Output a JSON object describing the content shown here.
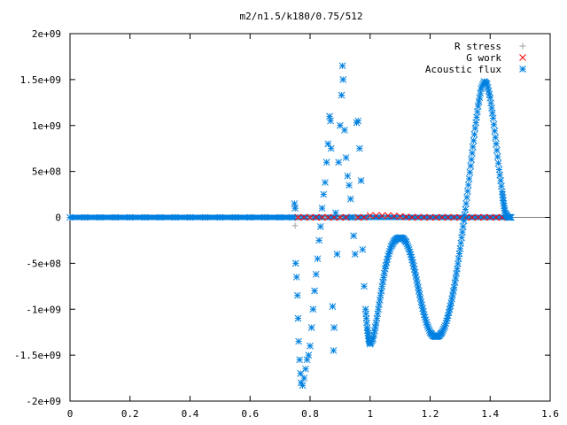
{
  "window": {
    "title": "m2/n1.5/k180/0.75/512"
  },
  "colors": {
    "background": "#ffffff",
    "axis": "#000000",
    "r_stress": "#a0a0a0",
    "g_work": "#ff0000",
    "acoustic_flux": "#0080e0"
  },
  "chart_data": {
    "type": "scatter",
    "title": "m2/n1.5/k180/0.75/512",
    "xlabel": "",
    "ylabel": "",
    "xlim": [
      0,
      1.6
    ],
    "ylim": [
      -2000000000,
      2000000000
    ],
    "x_ticks": [
      {
        "value": 0,
        "label": "0"
      },
      {
        "value": 0.2,
        "label": "0.2"
      },
      {
        "value": 0.4,
        "label": "0.4"
      },
      {
        "value": 0.6,
        "label": "0.6"
      },
      {
        "value": 0.8,
        "label": "0.8"
      },
      {
        "value": 1.0,
        "label": "1"
      },
      {
        "value": 1.2,
        "label": "1.2"
      },
      {
        "value": 1.4,
        "label": "1.4"
      },
      {
        "value": 1.6,
        "label": "1.6"
      }
    ],
    "y_ticks": [
      {
        "value": 2000000000,
        "label": "2e+09"
      },
      {
        "value": 1500000000,
        "label": "1.5e+09"
      },
      {
        "value": 1000000000,
        "label": "1e+09"
      },
      {
        "value": 500000000,
        "label": "5e+08"
      },
      {
        "value": 0,
        "label": "0"
      },
      {
        "value": -500000000,
        "label": "-5e+08"
      },
      {
        "value": -1000000000,
        "label": "-1e+09"
      },
      {
        "value": -1500000000,
        "label": "-1.5e+09"
      },
      {
        "value": -2000000000,
        "label": "-2e+09"
      }
    ],
    "grid": false,
    "legend_position": "top-right",
    "series": [
      {
        "name": "R stress",
        "marker": "plus",
        "color": "#a0a0a0",
        "points": [
          [
            0.75,
            -90000000
          ],
          [
            0.752,
            100000000
          ],
          [
            0.76,
            0
          ],
          [
            0.8,
            0
          ],
          [
            0.85,
            0
          ],
          [
            0.9,
            0
          ],
          [
            0.95,
            0
          ],
          [
            1.0,
            0
          ],
          [
            1.05,
            0
          ],
          [
            1.1,
            0
          ]
        ]
      },
      {
        "name": "G work",
        "marker": "cross",
        "color": "#ff0000",
        "points": [
          [
            0.76,
            0
          ],
          [
            0.78,
            0
          ],
          [
            0.8,
            0
          ],
          [
            0.82,
            0
          ],
          [
            0.84,
            0
          ],
          [
            0.86,
            0
          ],
          [
            0.88,
            0
          ],
          [
            0.9,
            0
          ],
          [
            0.92,
            0
          ],
          [
            0.94,
            0
          ],
          [
            0.96,
            0
          ],
          [
            0.98,
            0
          ],
          [
            1.0,
            20000000
          ],
          [
            1.02,
            20000000
          ],
          [
            1.04,
            20000000
          ],
          [
            1.06,
            20000000
          ],
          [
            1.08,
            15000000
          ],
          [
            1.1,
            10000000
          ],
          [
            1.12,
            5000000
          ],
          [
            1.14,
            0
          ],
          [
            1.16,
            0
          ],
          [
            1.18,
            0
          ],
          [
            1.2,
            0
          ],
          [
            1.22,
            0
          ],
          [
            1.24,
            0
          ],
          [
            1.26,
            0
          ],
          [
            1.28,
            0
          ],
          [
            1.3,
            0
          ],
          [
            1.32,
            0
          ],
          [
            1.34,
            0
          ],
          [
            1.36,
            0
          ],
          [
            1.38,
            0
          ],
          [
            1.4,
            0
          ],
          [
            1.42,
            0
          ],
          [
            1.44,
            0
          ],
          [
            1.46,
            0
          ]
        ]
      },
      {
        "name": "Acoustic flux",
        "marker": "star",
        "color": "#0080e0",
        "points": [
          [
            0.0,
            0
          ],
          [
            0.05,
            0
          ],
          [
            0.1,
            0
          ],
          [
            0.15,
            0
          ],
          [
            0.2,
            0
          ],
          [
            0.25,
            0
          ],
          [
            0.3,
            0
          ],
          [
            0.35,
            0
          ],
          [
            0.4,
            0
          ],
          [
            0.45,
            0
          ],
          [
            0.5,
            0
          ],
          [
            0.55,
            0
          ],
          [
            0.6,
            0
          ],
          [
            0.65,
            0
          ],
          [
            0.7,
            0
          ],
          [
            0.74,
            0
          ],
          [
            0.748,
            150000000
          ],
          [
            0.75,
            100000000
          ],
          [
            0.752,
            -500000000
          ],
          [
            0.755,
            -650000000
          ],
          [
            0.758,
            -850000000
          ],
          [
            0.76,
            -1100000000
          ],
          [
            0.762,
            -1350000000
          ],
          [
            0.765,
            -1550000000
          ],
          [
            0.768,
            -1700000000
          ],
          [
            0.77,
            -1800000000
          ],
          [
            0.775,
            -1830000000
          ],
          [
            0.78,
            -1750000000
          ],
          [
            0.785,
            -1650000000
          ],
          [
            0.79,
            -1550000000
          ],
          [
            0.795,
            -1500000000
          ],
          [
            0.8,
            -1400000000
          ],
          [
            0.805,
            -1200000000
          ],
          [
            0.81,
            -1000000000
          ],
          [
            0.815,
            -800000000
          ],
          [
            0.82,
            -620000000
          ],
          [
            0.825,
            -450000000
          ],
          [
            0.83,
            -250000000
          ],
          [
            0.835,
            -100000000
          ],
          [
            0.84,
            100000000
          ],
          [
            0.845,
            250000000
          ],
          [
            0.85,
            380000000
          ],
          [
            0.855,
            600000000
          ],
          [
            0.86,
            800000000
          ],
          [
            0.865,
            1100000000
          ],
          [
            0.868,
            1050000000
          ],
          [
            0.87,
            750000000
          ],
          [
            0.875,
            -970000000
          ],
          [
            0.878,
            -1450000000
          ],
          [
            0.88,
            -1200000000
          ],
          [
            0.885,
            50000000
          ],
          [
            0.89,
            -400000000
          ],
          [
            0.895,
            600000000
          ],
          [
            0.9,
            1000000000
          ],
          [
            0.905,
            1330000000
          ],
          [
            0.908,
            1650000000
          ],
          [
            0.91,
            1500000000
          ],
          [
            0.915,
            950000000
          ],
          [
            0.92,
            650000000
          ],
          [
            0.925,
            450000000
          ],
          [
            0.93,
            350000000
          ],
          [
            0.935,
            200000000
          ],
          [
            0.94,
            0
          ],
          [
            0.945,
            -200000000
          ],
          [
            0.95,
            -400000000
          ],
          [
            0.955,
            1030000000
          ],
          [
            0.96,
            1050000000
          ],
          [
            0.965,
            750000000
          ],
          [
            0.97,
            400000000
          ],
          [
            0.975,
            -350000000
          ],
          [
            0.98,
            -750000000
          ],
          [
            0.985,
            -1000000000
          ],
          [
            0.99,
            -1200000000
          ],
          [
            0.995,
            -1320000000
          ],
          [
            1.0,
            -1380000000
          ],
          [
            1.01,
            -1320000000
          ],
          [
            1.02,
            -1150000000
          ],
          [
            1.03,
            -950000000
          ],
          [
            1.04,
            -750000000
          ],
          [
            1.05,
            -560000000
          ],
          [
            1.06,
            -420000000
          ],
          [
            1.07,
            -320000000
          ],
          [
            1.08,
            -260000000
          ],
          [
            1.09,
            -230000000
          ],
          [
            1.1,
            -220000000
          ],
          [
            1.11,
            -230000000
          ],
          [
            1.12,
            -270000000
          ],
          [
            1.13,
            -350000000
          ],
          [
            1.14,
            -460000000
          ],
          [
            1.15,
            -600000000
          ],
          [
            1.16,
            -760000000
          ],
          [
            1.17,
            -920000000
          ],
          [
            1.18,
            -1060000000
          ],
          [
            1.19,
            -1170000000
          ],
          [
            1.2,
            -1250000000
          ],
          [
            1.21,
            -1290000000
          ],
          [
            1.22,
            -1300000000
          ],
          [
            1.23,
            -1290000000
          ],
          [
            1.24,
            -1250000000
          ],
          [
            1.25,
            -1180000000
          ],
          [
            1.26,
            -1070000000
          ],
          [
            1.27,
            -930000000
          ],
          [
            1.28,
            -760000000
          ],
          [
            1.29,
            -560000000
          ],
          [
            1.3,
            -340000000
          ],
          [
            1.31,
            -100000000
          ],
          [
            1.32,
            150000000
          ],
          [
            1.33,
            420000000
          ],
          [
            1.34,
            700000000
          ],
          [
            1.35,
            970000000
          ],
          [
            1.36,
            1210000000
          ],
          [
            1.37,
            1400000000
          ],
          [
            1.38,
            1480000000
          ],
          [
            1.39,
            1450000000
          ],
          [
            1.4,
            1300000000
          ],
          [
            1.41,
            1080000000
          ],
          [
            1.42,
            800000000
          ],
          [
            1.43,
            520000000
          ],
          [
            1.44,
            280000000
          ],
          [
            1.445,
            150000000
          ],
          [
            1.45,
            50000000
          ],
          [
            1.46,
            0
          ],
          [
            1.47,
            0
          ]
        ]
      }
    ]
  }
}
